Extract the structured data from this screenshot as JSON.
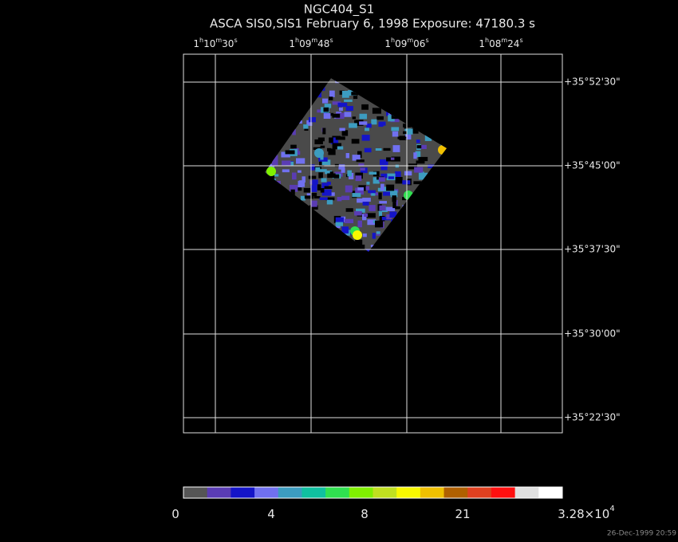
{
  "header": {
    "title": "NGC404_S1",
    "subtitle": "ASCA SIS0,SIS1 February 6, 1998 Exposure: 47180.3 s"
  },
  "ra_labels": [
    [
      "1",
      "h",
      "10",
      "m",
      "30",
      "s"
    ],
    [
      "1",
      "h",
      "09",
      "m",
      "48",
      "s"
    ],
    [
      "1",
      "h",
      "09",
      "m",
      "06",
      "s"
    ],
    [
      "1",
      "h",
      "08",
      "m",
      "24",
      "s"
    ]
  ],
  "dec_labels": [
    "+35°52'30\"",
    "+35°45'00\"",
    "+35°37'30\"",
    "+35°30'00\"",
    "+35°22'30\""
  ],
  "colorbar": {
    "colors": [
      "#555555",
      "#5a3cb4",
      "#1414c8",
      "#7070f0",
      "#3c9cc0",
      "#10c0a0",
      "#30e050",
      "#80f000",
      "#c0e020",
      "#f8f800",
      "#f0c000",
      "#b06000",
      "#e04020",
      "#ff1010",
      "#e0e0e0",
      "#ffffff"
    ],
    "labels": [
      [
        "0"
      ],
      [
        "4"
      ],
      [
        "8"
      ],
      [
        "21"
      ],
      [
        "3.28×10",
        "4"
      ]
    ]
  },
  "timestamp": "26-Dec-1999 20:59"
}
